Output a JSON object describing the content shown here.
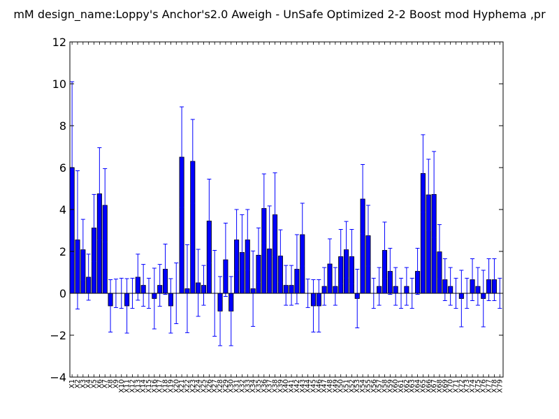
{
  "chart_data": {
    "type": "bar",
    "title": "mM  design_name:Loppy's Anchor's2.0 Aweigh - UnSafe Optimized 2-2 Boost mod Hyphema ,pr",
    "xlabel": "",
    "ylabel": "",
    "ylim": [
      -4,
      12
    ],
    "yticks": [
      -4,
      -2,
      0,
      2,
      4,
      6,
      8,
      10,
      12
    ],
    "grid": false,
    "bar_color": "#0000ff",
    "error_color": "#0000ff",
    "categories": [
      "X1",
      "X2",
      "X3",
      "X4",
      "X5",
      "X6",
      "X7",
      "X8",
      "X9",
      "X10",
      "X11",
      "X12",
      "X13",
      "X14",
      "X15",
      "X16",
      "X17",
      "X18",
      "X19",
      "X20",
      "X21",
      "X22",
      "X23",
      "X24",
      "X25",
      "X26",
      "X27",
      "X28",
      "X29",
      "X30",
      "X31",
      "X32",
      "X33",
      "X34",
      "X35",
      "X36",
      "X37",
      "X38",
      "X39",
      "X40",
      "X41",
      "X42",
      "X43",
      "X44",
      "X45",
      "X46",
      "X47",
      "X48",
      "X49",
      "X50",
      "X51",
      "X52",
      "X53",
      "X54",
      "X55",
      "X56",
      "X57",
      "X58",
      "X59",
      "X60",
      "X61",
      "X62",
      "X63",
      "X64",
      "X65",
      "X66",
      "X67",
      "X68",
      "X69",
      "X70",
      "X71",
      "X72",
      "X73",
      "X74",
      "X75",
      "X76",
      "X77",
      "X78",
      "X79"
    ],
    "values": [
      6.0,
      2.55,
      2.08,
      0.77,
      3.12,
      4.75,
      4.2,
      -0.6,
      0.0,
      0.0,
      -0.6,
      0.0,
      0.77,
      0.38,
      0.0,
      -0.25,
      0.38,
      1.15,
      -0.6,
      0.0,
      6.5,
      0.22,
      6.3,
      0.5,
      0.38,
      3.45,
      0.0,
      -0.85,
      1.6,
      -0.85,
      2.55,
      1.95,
      2.55,
      0.22,
      1.82,
      4.05,
      2.12,
      3.75,
      1.78,
      0.38,
      0.38,
      1.15,
      2.8,
      0.0,
      -0.6,
      -0.6,
      0.33,
      1.4,
      0.33,
      1.75,
      2.08,
      1.75,
      -0.25,
      4.5,
      2.75,
      0.0,
      0.33,
      2.05,
      1.05,
      0.33,
      0.0,
      0.33,
      0.0,
      1.05,
      5.72,
      4.7,
      4.72,
      1.98,
      0.65,
      0.33,
      0.0,
      -0.25,
      0.0,
      0.65,
      0.33,
      -0.25,
      0.65,
      0.65,
      0.0
    ],
    "errors": [
      4.1,
      3.3,
      1.45,
      1.1,
      1.6,
      2.2,
      1.75,
      1.25,
      0.68,
      0.72,
      1.3,
      0.72,
      1.1,
      1.0,
      0.72,
      1.45,
      1.0,
      1.2,
      1.3,
      1.45,
      2.4,
      2.1,
      2.0,
      1.6,
      0.95,
      2.0,
      2.05,
      1.65,
      1.75,
      1.65,
      1.45,
      1.8,
      1.45,
      1.8,
      1.3,
      1.65,
      2.05,
      2.0,
      1.25,
      0.95,
      0.95,
      1.65,
      1.5,
      0.68,
      1.25,
      1.25,
      0.9,
      1.2,
      0.9,
      1.3,
      1.35,
      1.3,
      1.4,
      1.65,
      1.45,
      0.72,
      0.9,
      1.35,
      1.1,
      0.9,
      0.72,
      0.9,
      0.72,
      1.1,
      1.85,
      1.7,
      2.05,
      1.3,
      1.0,
      0.9,
      0.72,
      1.35,
      0.72,
      1.0,
      0.9,
      1.35,
      1.0,
      1.0,
      0.72
    ]
  }
}
